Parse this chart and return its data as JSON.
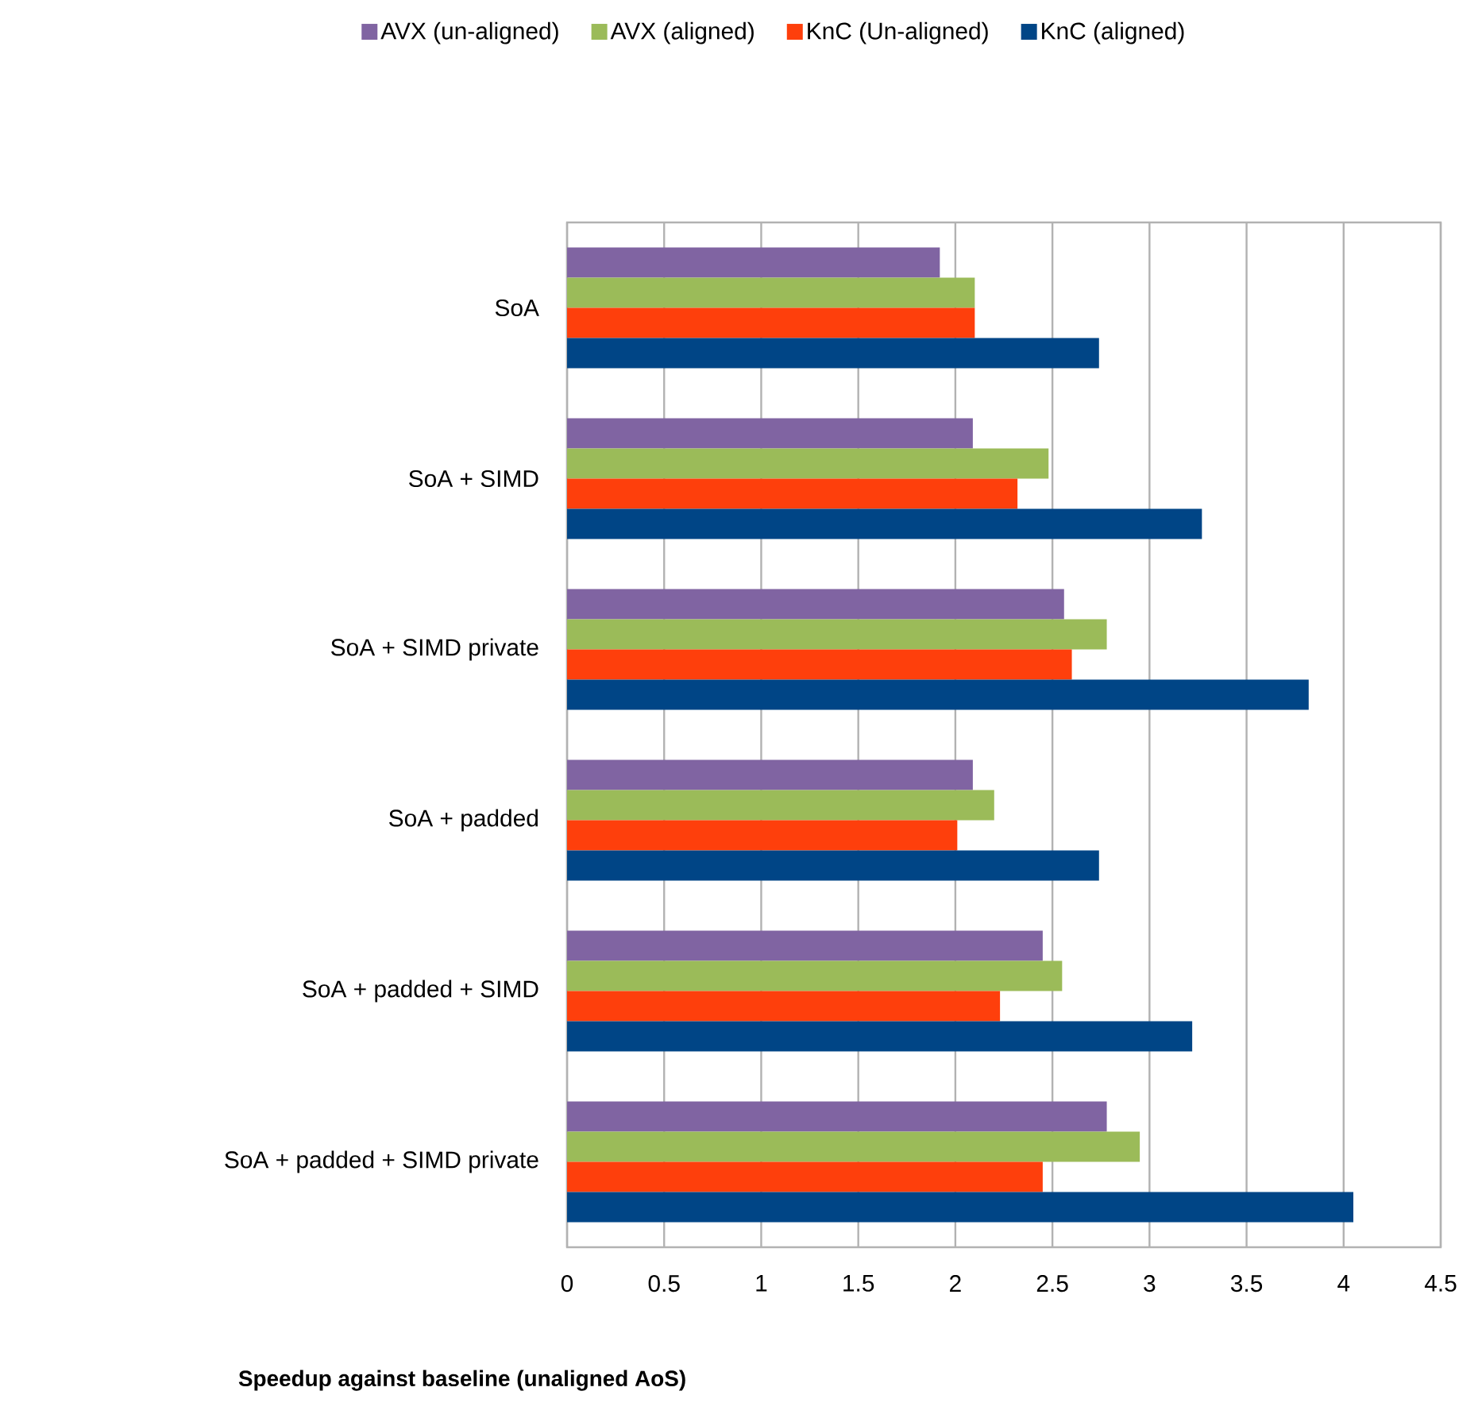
{
  "chart_data": {
    "type": "bar",
    "orientation": "horizontal",
    "xlabel": "Speedup against baseline (unaligned AoS)",
    "categories": [
      "SoA",
      "SoA +  SIMD",
      "SoA +  SIMD private",
      "SoA +  padded",
      "SoA + padded + SIMD",
      "SoA + padded + SIMD private"
    ],
    "series": [
      {
        "name": "AVX (un-aligned)",
        "color": "#8064a2",
        "values": [
          1.92,
          2.09,
          2.56,
          2.09,
          2.45,
          2.78
        ]
      },
      {
        "name": "AVX (aligned)",
        "color": "#9bbb59",
        "values": [
          2.1,
          2.48,
          2.78,
          2.2,
          2.55,
          2.95
        ]
      },
      {
        "name": "KnC (Un-aligned)",
        "color": "#fe3f0c",
        "values": [
          2.1,
          2.32,
          2.6,
          2.01,
          2.23,
          2.45
        ]
      },
      {
        "name": "KnC (aligned)",
        "color": "#004586",
        "values": [
          2.74,
          3.27,
          3.82,
          2.74,
          3.22,
          4.05
        ]
      }
    ],
    "xlim": [
      0,
      4.5
    ],
    "xticks": [
      0,
      0.5,
      1,
      1.5,
      2,
      2.5,
      3,
      3.5,
      4,
      4.5
    ],
    "grid": "x",
    "legend": "top"
  }
}
